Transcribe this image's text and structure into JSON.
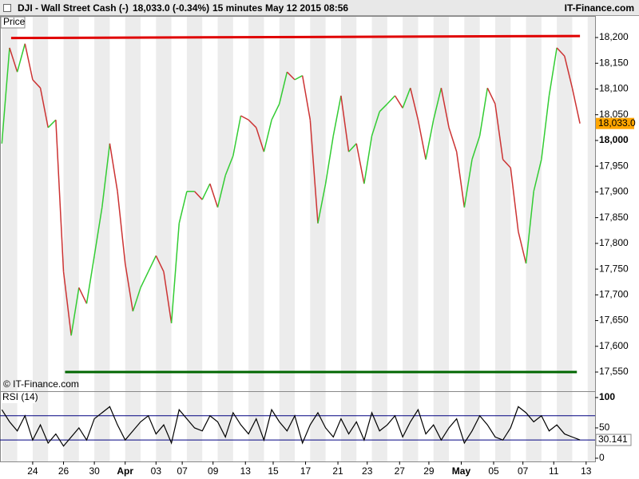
{
  "chart_data": {
    "type": "line",
    "title": "DJI - Wall Street Cash (-)",
    "quote": "18,033.0 (-0.34%)",
    "interval": "15 minutes",
    "timestamp": "May 12 2015 08:56",
    "brand": "IT-Finance.com",
    "panel_label": "Price",
    "copyright": "© IT-Finance.com",
    "x": [
      -2,
      -1.5,
      -1,
      -0.5,
      0,
      0.5,
      1,
      1.5,
      2,
      2.5,
      3,
      3.5,
      4,
      4.5,
      5,
      5.5,
      6,
      6.5,
      7,
      7.5,
      8,
      8.5,
      9,
      9.5,
      10,
      10.5,
      11,
      11.5,
      12,
      12.5,
      13,
      13.5,
      14,
      14.5,
      15,
      15.5,
      16,
      16.5,
      17,
      17.5,
      18,
      18.5,
      19,
      19.5,
      20,
      20.5,
      21,
      21.5,
      22,
      22.5,
      23,
      23.5,
      24,
      24.5,
      25,
      25.5,
      26,
      26.5,
      27,
      27.5,
      28,
      28.5,
      29,
      29.5,
      30,
      30.5,
      31,
      31.5,
      32,
      32.5,
      33,
      33.5,
      34,
      34.5,
      35,
      35.5
    ],
    "series": [
      {
        "name": "Price",
        "up_color": "#33cc33",
        "down_color": "#cc3333",
        "values": [
          17994,
          18180,
          18133,
          18188,
          18118,
          18102,
          18025,
          18040,
          17745,
          17621,
          17714,
          17683,
          17776,
          17870,
          17994,
          17901,
          17761,
          17668,
          17714,
          17745,
          17776,
          17745,
          17645,
          17839,
          17901,
          17901,
          17885,
          17916,
          17870,
          17932,
          17970,
          18048,
          18040,
          18025,
          17978,
          18040,
          18071,
          18133,
          18118,
          18126,
          18040,
          17839,
          17916,
          18009,
          18087,
          17978,
          17994,
          17916,
          18009,
          18056,
          18071,
          18087,
          18063,
          18102,
          18040,
          17963,
          18040,
          18102,
          18025,
          17978,
          17870,
          17963,
          18009,
          18102,
          18071,
          17963,
          17947,
          17823,
          17761,
          17901,
          17963,
          18087,
          18180,
          18164,
          18102,
          18033
        ]
      }
    ],
    "last": {
      "value": 18033,
      "label": "18,033.0",
      "color": "#ffa500"
    },
    "xlim": [
      -2.12,
      36.48
    ],
    "xticks": [
      {
        "value": 0,
        "label": "24"
      },
      {
        "value": 2,
        "label": "26"
      },
      {
        "value": 4,
        "label": "30"
      },
      {
        "value": 6,
        "label": "Apr"
      },
      {
        "value": 8,
        "label": "03"
      },
      {
        "value": 9.7,
        "label": "07"
      },
      {
        "value": 11.7,
        "label": "09"
      },
      {
        "value": 13.8,
        "label": "13"
      },
      {
        "value": 15.6,
        "label": "15"
      },
      {
        "value": 17.7,
        "label": "17"
      },
      {
        "value": 19.8,
        "label": "21"
      },
      {
        "value": 21.7,
        "label": "23"
      },
      {
        "value": 23.8,
        "label": "27"
      },
      {
        "value": 25.7,
        "label": "29"
      },
      {
        "value": 27.8,
        "label": "May"
      },
      {
        "value": 29.9,
        "label": "05"
      },
      {
        "value": 31.8,
        "label": "07"
      },
      {
        "value": 33.8,
        "label": "11"
      },
      {
        "value": 35.9,
        "label": "13"
      }
    ],
    "ylim": [
      17512.8,
      18241.9
    ],
    "yticks": [
      {
        "value": 17550,
        "label": "17,550"
      },
      {
        "value": 17600,
        "label": "17,600"
      },
      {
        "value": 17650,
        "label": "17,650"
      },
      {
        "value": 17700,
        "label": "17,700"
      },
      {
        "value": 17750,
        "label": "17,750"
      },
      {
        "value": 17800,
        "label": "17,800"
      },
      {
        "value": 17850,
        "label": "17,850"
      },
      {
        "value": 17900,
        "label": "17,900"
      },
      {
        "value": 17950,
        "label": "17,950"
      },
      {
        "value": 18000,
        "label": "18,000"
      },
      {
        "value": 18050,
        "label": "18,050"
      },
      {
        "value": 18100,
        "label": "18,100"
      },
      {
        "value": 18150,
        "label": "18,150"
      },
      {
        "value": 18200,
        "label": "18,200"
      }
    ],
    "trendlines": [
      {
        "color": "#e00000",
        "x": [
          -1.4,
          35.5
        ],
        "y": [
          18199,
          18203
        ]
      },
      {
        "color": "#006600",
        "x": [
          2.1,
          35.3
        ],
        "y": [
          17550,
          17550
        ]
      }
    ],
    "rsi": {
      "name": "RSI (14)",
      "color": "#000000",
      "level_color": "#000080",
      "values": [
        80,
        60,
        45,
        70,
        30,
        55,
        25,
        40,
        20,
        35,
        50,
        30,
        65,
        75,
        85,
        55,
        30,
        45,
        60,
        70,
        40,
        55,
        25,
        80,
        65,
        50,
        45,
        70,
        60,
        35,
        75,
        55,
        40,
        65,
        30,
        80,
        60,
        45,
        70,
        25,
        55,
        75,
        50,
        35,
        65,
        40,
        60,
        30,
        75,
        45,
        55,
        70,
        35,
        60,
        80,
        40,
        55,
        30,
        50,
        65,
        25,
        45,
        70,
        55,
        35,
        30,
        50,
        85,
        75,
        60,
        70,
        45,
        55,
        40,
        35,
        30.141
      ],
      "last": {
        "value": 30.141,
        "label": "30.141"
      },
      "ylim": [
        -5.3,
        110.5
      ],
      "yticks": [
        0,
        50,
        100
      ],
      "levels": [
        70,
        30
      ]
    }
  }
}
